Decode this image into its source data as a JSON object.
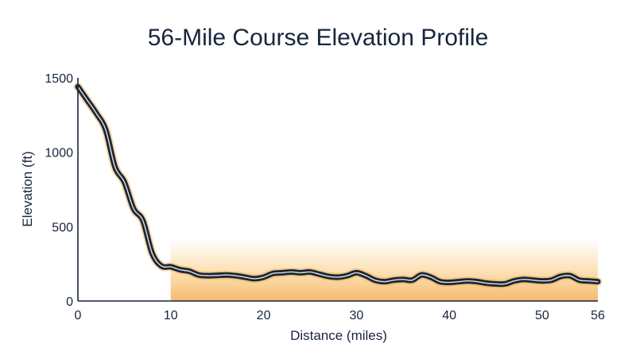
{
  "chart_data": {
    "type": "line",
    "title": "56-Mile Course Elevation Profile",
    "xlabel": "Distance (miles)",
    "ylabel": "Elevation (ft)",
    "xlim": [
      0,
      56
    ],
    "ylim": [
      0,
      1500
    ],
    "x_ticks": [
      0,
      10,
      20,
      30,
      40,
      50,
      56
    ],
    "y_ticks": [
      0,
      500,
      1000,
      1500
    ],
    "grid": false,
    "colors": {
      "line": "#17263c",
      "glow": "#f2a93b",
      "band": "#f7b955"
    },
    "highlight_band": {
      "x_start": 10,
      "x_end": 56,
      "y_top": 420
    },
    "series": [
      {
        "x": [
          0,
          1,
          2,
          3,
          4,
          5,
          6,
          7,
          8,
          9,
          10,
          11,
          12,
          13,
          14,
          15,
          16,
          17,
          18,
          19,
          20,
          21,
          22,
          23,
          24,
          25,
          26,
          27,
          28,
          29,
          30,
          31,
          32,
          33,
          34,
          35,
          36,
          37,
          38,
          39,
          40,
          41,
          42,
          43,
          44,
          45,
          46,
          47,
          48,
          49,
          50,
          51,
          52,
          53,
          54,
          55,
          56
        ],
        "y": [
          1440,
          1350,
          1260,
          1150,
          900,
          800,
          620,
          540,
          320,
          235,
          230,
          210,
          200,
          175,
          170,
          172,
          175,
          170,
          160,
          150,
          160,
          185,
          190,
          195,
          190,
          195,
          180,
          165,
          160,
          170,
          190,
          170,
          140,
          130,
          140,
          145,
          140,
          175,
          160,
          130,
          125,
          130,
          135,
          130,
          120,
          115,
          115,
          135,
          145,
          140,
          135,
          140,
          165,
          170,
          140,
          135,
          130
        ]
      }
    ]
  }
}
